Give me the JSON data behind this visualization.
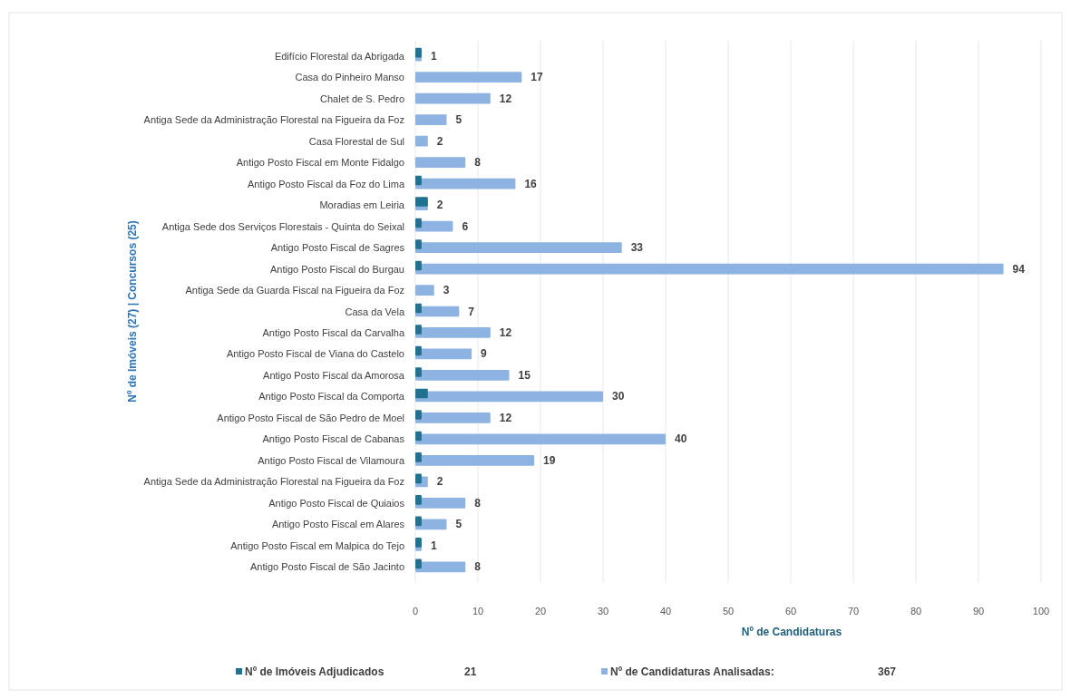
{
  "chart_data": {
    "type": "bar",
    "orientation": "horizontal",
    "xlabel": "Nº de Candidaturas",
    "ylabel": "Nº de Imóveis (27) | Concursos (25)",
    "categories": [
      "Edifício Florestal da Abrigada",
      "Casa do Pinheiro Manso",
      "Chalet de S. Pedro",
      "Antiga Sede da Administração Florestal na Figueira da Foz",
      "Casa Florestal de Sul",
      "Antigo Posto Fiscal em Monte Fidalgo",
      "Antigo Posto Fiscal da Foz do Lima",
      "Moradias em Leiria",
      "Antiga Sede dos Serviços Florestais - Quinta do Seixal",
      "Antigo Posto Fiscal de Sagres",
      "Antigo Posto Fiscal do Burgau",
      "Antiga Sede da Guarda Fiscal na Figueira da Foz",
      "Casa da Vela",
      "Antigo Posto Fiscal da Carvalha",
      "Antigo Posto Fiscal de Viana do Castelo",
      "Antigo Posto Fiscal da Amorosa",
      "Antigo Posto Fiscal da Comporta",
      "Antigo Posto Fiscal de São Pedro de Moel",
      "Antigo Posto Fiscal de Cabanas",
      "Antigo Posto Fiscal de Vilamoura",
      "Antiga Sede da Administração Florestal na Figueira da Foz",
      "Antigo Posto Fiscal de Quiaios",
      "Antigo Posto Fiscal em Alares",
      "Antigo Posto Fiscal em Malpica do Tejo",
      "Antigo Posto Fiscal de São Jacinto"
    ],
    "series": [
      {
        "name": "Nº de Candidaturas Analisadas:",
        "color": "#8db3e2",
        "values": [
          1,
          17,
          12,
          5,
          2,
          8,
          16,
          2,
          6,
          33,
          94,
          3,
          7,
          12,
          9,
          15,
          30,
          12,
          40,
          19,
          2,
          8,
          5,
          1,
          8
        ],
        "value_labels": [
          "1",
          "17",
          "12",
          "5",
          "2",
          "8",
          "16",
          "2",
          "6",
          "33",
          "94",
          "3",
          "7",
          "12",
          "9",
          "15",
          "30",
          "12",
          "40",
          "19",
          "2",
          "8",
          "5",
          "1",
          "8"
        ]
      },
      {
        "name": "Nº de Imóveis Adjudicados",
        "color": "#1f7391",
        "values": [
          1,
          0,
          0,
          0,
          0,
          0,
          1,
          2,
          1,
          1,
          1,
          0,
          1,
          1,
          1,
          1,
          2,
          1,
          1,
          1,
          1,
          1,
          1,
          1,
          1
        ]
      }
    ],
    "xlim": [
      0,
      100
    ],
    "xticks": [
      0,
      10,
      20,
      30,
      40,
      50,
      60,
      70,
      80,
      90,
      100
    ],
    "grid": "x",
    "legend": "bottom",
    "annotations": [
      "21",
      "367"
    ]
  }
}
